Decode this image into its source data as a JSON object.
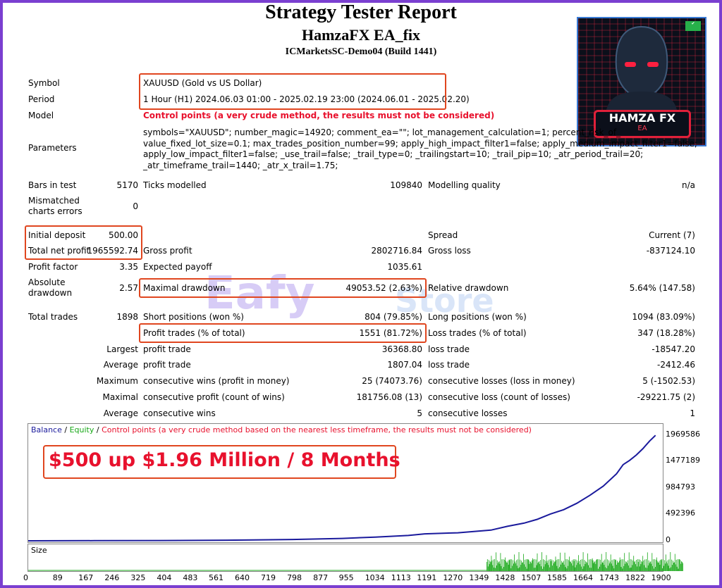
{
  "header": {
    "title": "Strategy Tester Report",
    "ea_name": "HamzaFX EA_fix",
    "server": "ICMarketsSC-Demo04 (Build 1441)"
  },
  "logo": {
    "line1": "HAMZA FX",
    "line2": "EA"
  },
  "watermark": {
    "brand": "Eafy",
    "suffix": "Store"
  },
  "info": {
    "symbol_label": "Symbol",
    "symbol_value": "XAUUSD (Gold vs US Dollar)",
    "period_label": "Period",
    "period_value": "1 Hour (H1) 2024.06.03 01:00 - 2025.02.19 23:00 (2024.06.01 - 2025.02.20)",
    "model_label": "Model",
    "model_value": "Control points (a very crude method, the results must not be considered)",
    "parameters_label": "Parameters",
    "parameters_value": "symbols=\"XAUUSD\"; number_magic=14920; comment_ea=\"\"; lot_management_calculation=1; percent_risk_of_\nvalue_fixed_lot_size=0.1; max_trades_position_number=99; apply_high_impact_filter1=false; apply_medium_impact_filter1=false;\napply_low_impact_filter1=false; _use_trail=false; _trail_type=0; _trailingstart=10; _trail_pip=10; _atr_period_trail=20;\n_atr_timeframe_trail=1440; _atr_x_trail=1.75;"
  },
  "stats": {
    "bars_label": "Bars in test",
    "bars_value": "5170",
    "ticks_label": "Ticks modelled",
    "ticks_value": "109840",
    "quality_label": "Modelling quality",
    "quality_value": "n/a",
    "mismatch_label1": "Mismatched",
    "mismatch_label2": "charts errors",
    "mismatch_value": "0",
    "initial_label": "Initial deposit",
    "initial_value": "500.00",
    "spread_label": "Spread",
    "spread_value": "Current (7)",
    "netprofit_label": "Total net profit",
    "netprofit_value": "1965592.74",
    "grossprofit_label": "Gross profit",
    "grossprofit_value": "2802716.84",
    "grossloss_label": "Gross loss",
    "grossloss_value": "-837124.10",
    "pf_label": "Profit factor",
    "pf_value": "3.35",
    "ep_label": "Expected payoff",
    "ep_value": "1035.61",
    "absdd_label1": "Absolute",
    "absdd_label2": "drawdown",
    "absdd_value": "2.57",
    "maxdd_label": "Maximal drawdown",
    "maxdd_value": "49053.52 (2.63%)",
    "reldd_label": "Relative drawdown",
    "reldd_value": "5.64% (147.58)",
    "trades_label": "Total trades",
    "trades_value": "1898",
    "short_label": "Short positions (won %)",
    "short_value": "804 (79.85%)",
    "long_label": "Long positions (won %)",
    "long_value": "1094 (83.09%)",
    "profittrades_label": "Profit trades (% of total)",
    "profittrades_value": "1551 (81.72%)",
    "losstrades_label": "Loss trades (% of total)",
    "losstrades_value": "347 (18.28%)",
    "largest_label": "Largest",
    "largest_pt_label": "profit trade",
    "largest_pt_value": "36368.80",
    "largest_lt_label": "loss trade",
    "largest_lt_value": "-18547.20",
    "average_label": "Average",
    "average_pt_label": "profit trade",
    "average_pt_value": "1807.04",
    "average_lt_label": "loss trade",
    "average_lt_value": "-2412.46",
    "maximum_label": "Maximum",
    "max_cw_label": "consecutive wins (profit in money)",
    "max_cw_value": "25 (74073.76)",
    "max_cl_label": "consecutive losses (loss in money)",
    "max_cl_value": "5 (-1502.53)",
    "maximal_label": "Maximal",
    "mxl_cp_label": "consecutive profit (count of wins)",
    "mxl_cp_value": "181756.08 (13)",
    "mxl_cl_label": "consecutive loss (count of losses)",
    "mxl_cl_value": "-29221.75 (2)",
    "avgc_label": "Average",
    "avgc_w_label": "consecutive wins",
    "avgc_w_value": "5",
    "avgc_l_label": "consecutive losses",
    "avgc_l_value": "1"
  },
  "legend": {
    "balance": "Balance",
    "sep1": " / ",
    "equity": "Equity",
    "sep2": " / ",
    "control": "Control points (a very crude method based on the nearest less timeframe, the results must not be considered)"
  },
  "promo": "$500 up $1.96 Million / 8 Months",
  "size_label": "Size",
  "colors": {
    "balance": "#1a1a9c",
    "equity": "#18a818",
    "size": "#18a818",
    "accent": "#e8112d"
  },
  "chart_data": {
    "type": "line",
    "title": "",
    "ylabel": "",
    "xlabel": "",
    "ylim": [
      0,
      2100000
    ],
    "y_ticks": [
      0,
      492396,
      984793,
      1477189,
      1969586
    ],
    "x_ticks": [
      0,
      89,
      167,
      246,
      325,
      404,
      483,
      561,
      640,
      719,
      798,
      877,
      955,
      1034,
      1113,
      1191,
      1270,
      1349,
      1428,
      1507,
      1585,
      1664,
      1743,
      1822,
      1900
    ],
    "series": [
      {
        "name": "Balance",
        "x": [
          0,
          200,
          400,
          600,
          800,
          950,
          1050,
          1150,
          1200,
          1300,
          1400,
          1450,
          1500,
          1540,
          1580,
          1620,
          1660,
          1700,
          1740,
          1780,
          1800,
          1820,
          1840,
          1860,
          1880,
          1898
        ],
        "values": [
          500,
          2000,
          5000,
          12000,
          25000,
          45000,
          70000,
          100000,
          130000,
          150000,
          200000,
          270000,
          330000,
          400000,
          500000,
          580000,
          700000,
          850000,
          1020000,
          1250000,
          1420000,
          1500000,
          1600000,
          1720000,
          1860000,
          1965592
        ]
      }
    ],
    "size_series_note_omitted": false
  }
}
